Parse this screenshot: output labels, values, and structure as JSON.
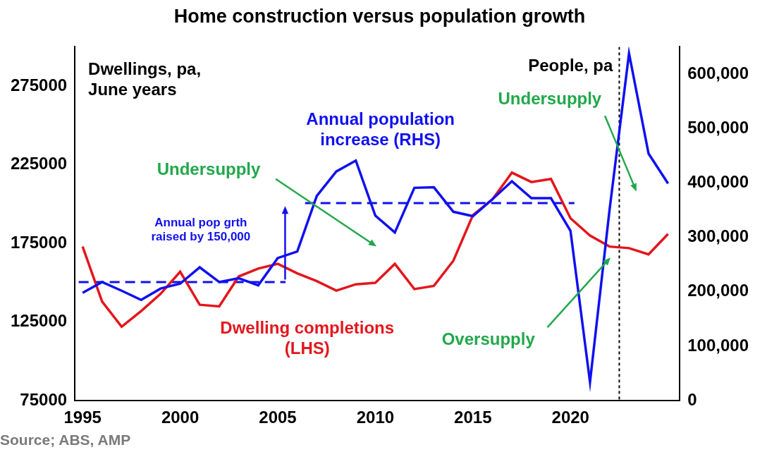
{
  "chart_data": {
    "type": "line",
    "title": "Home construction versus population growth",
    "y_label": "Dwellings, pa, June years",
    "y2_label": "People, pa",
    "source": "Source; ABS, AMP",
    "x": [
      1995,
      1996,
      1997,
      1998,
      1999,
      2000,
      2001,
      2002,
      2003,
      2004,
      2005,
      2006,
      2007,
      2008,
      2009,
      2010,
      2011,
      2012,
      2013,
      2014,
      2015,
      2016,
      2017,
      2018,
      2019,
      2020,
      2021,
      2022,
      2023,
      2024,
      2025
    ],
    "xlim": [
      1994.6,
      2025.6
    ],
    "xticks": [
      1995,
      2000,
      2005,
      2010,
      2015,
      2020
    ],
    "ylim": [
      75000,
      300000
    ],
    "yticks": [
      75000,
      125000,
      175000,
      225000,
      275000
    ],
    "y2lim": [
      0,
      650000
    ],
    "y2ticks": [
      0,
      {
        "value": 100000,
        "label": "100,000"
      },
      {
        "value": 200000,
        "label": "200,000"
      },
      {
        "value": 300000,
        "label": "300,000"
      },
      {
        "value": 400000,
        "label": "400,000"
      },
      {
        "value": 500000,
        "label": "500,000"
      },
      {
        "value": 600000,
        "label": "600,000"
      }
    ],
    "grid": false,
    "series": [
      {
        "name": "Annual population increase (RHS)",
        "color": "#1010f0",
        "axis": "y2",
        "values": [
          198000,
          218000,
          202000,
          185000,
          206000,
          215000,
          245000,
          218000,
          225000,
          212000,
          262000,
          274000,
          376000,
          421000,
          441000,
          340000,
          309000,
          391000,
          392000,
          347000,
          339000,
          370000,
          403000,
          372000,
          372000,
          312000,
          34000,
          350000,
          638000,
          454000,
          399000
        ]
      },
      {
        "name": "Dwelling completions (LHS)",
        "color": "#e3161c",
        "values": [
          173000,
          138000,
          122000,
          132000,
          143000,
          157000,
          136000,
          135000,
          154000,
          159000,
          162000,
          156000,
          151000,
          145000,
          149000,
          150000,
          162000,
          146000,
          148000,
          164000,
          193000,
          203000,
          220000,
          214000,
          216000,
          191000,
          180000,
          173000,
          172000,
          168000,
          181000
        ]
      }
    ],
    "reference_lines": [
      {
        "axis": "y2",
        "value": 218000,
        "x": [
          1994.8,
          2005.4
        ],
        "line_style": "dashed",
        "color": "#1010f0"
      },
      {
        "axis": "y2",
        "value": 363000,
        "x": [
          2006.4,
          2020.2
        ],
        "line_style": "dashed",
        "color": "#1010f0"
      }
    ],
    "vertical_lines": [
      {
        "x": 2022.5,
        "line_style": "dotted",
        "color": "#000000"
      }
    ],
    "annotations": [
      {
        "text": "Undersupply",
        "color": "#22a84b"
      },
      {
        "text": "Undersupply",
        "color": "#22a84b"
      },
      {
        "text": "Oversupply",
        "color": "#22a84b"
      },
      {
        "text": "Annual pop grth raised by 150,000",
        "color": "#1010f0"
      }
    ]
  }
}
